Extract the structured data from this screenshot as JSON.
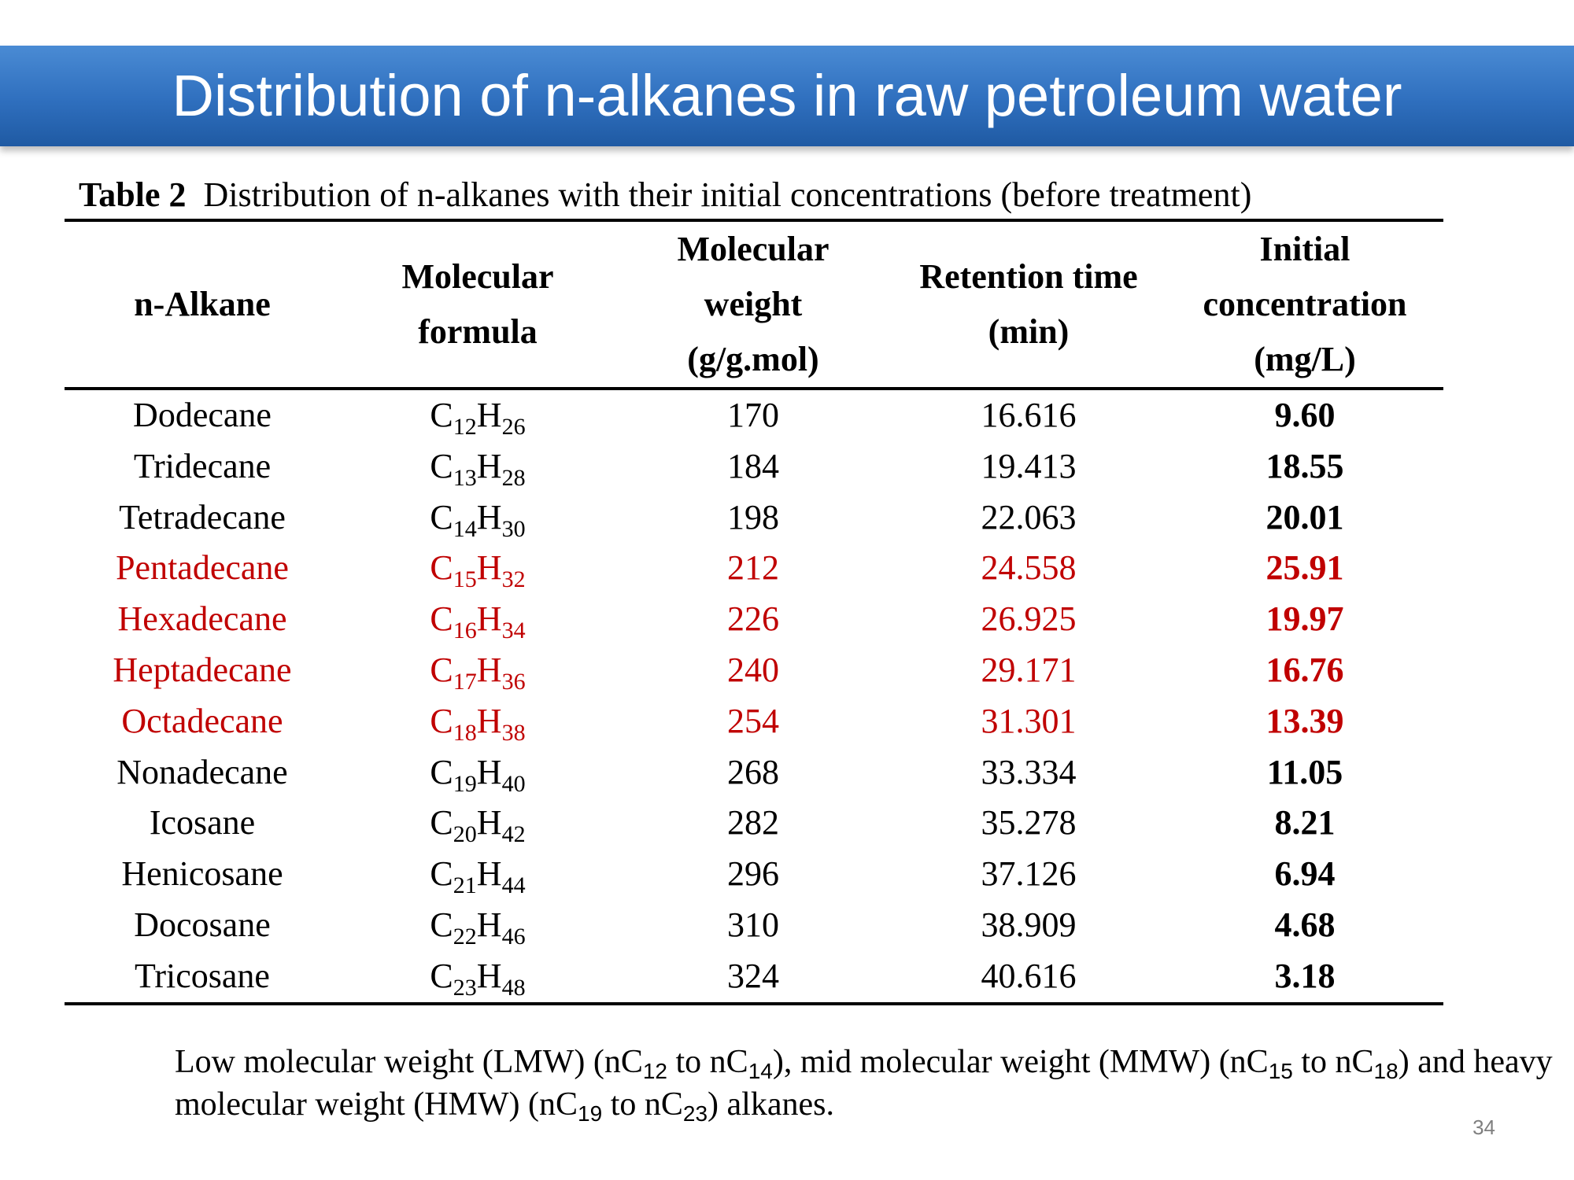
{
  "slide": {
    "title": "Distribution of n-alkanes in raw petroleum water",
    "page_number": "34"
  },
  "caption": {
    "label": "Table 2",
    "text": "Distribution of n-alkanes with their initial concentrations (before treatment)"
  },
  "table": {
    "headers": {
      "h1": [
        "n-Alkane"
      ],
      "h2": [
        "Molecular",
        "formula"
      ],
      "h3": [
        "Molecular",
        "weight",
        "(g/g.mol)"
      ],
      "h4": [
        "Retention time",
        "(min)"
      ],
      "h5": [
        "Initial",
        "concentration",
        "(mg/L)"
      ]
    },
    "highlight_color": "#c00000",
    "rows": [
      {
        "name": "Dodecane",
        "c": "12",
        "h": "26",
        "mw": "170",
        "rt": "16.616",
        "conc": "9.60",
        "highlight": false
      },
      {
        "name": "Tridecane",
        "c": "13",
        "h": "28",
        "mw": "184",
        "rt": "19.413",
        "conc": "18.55",
        "highlight": false
      },
      {
        "name": "Tetradecane",
        "c": "14",
        "h": "30",
        "mw": "198",
        "rt": "22.063",
        "conc": "20.01",
        "highlight": false
      },
      {
        "name": "Pentadecane",
        "c": "15",
        "h": "32",
        "mw": "212",
        "rt": "24.558",
        "conc": "25.91",
        "highlight": true
      },
      {
        "name": "Hexadecane",
        "c": "16",
        "h": "34",
        "mw": "226",
        "rt": "26.925",
        "conc": "19.97",
        "highlight": true
      },
      {
        "name": "Heptadecane",
        "c": "17",
        "h": "36",
        "mw": "240",
        "rt": "29.171",
        "conc": "16.76",
        "highlight": true
      },
      {
        "name": "Octadecane",
        "c": "18",
        "h": "38",
        "mw": "254",
        "rt": "31.301",
        "conc": "13.39",
        "highlight": true
      },
      {
        "name": "Nonadecane",
        "c": "19",
        "h": "40",
        "mw": "268",
        "rt": "33.334",
        "conc": "11.05",
        "highlight": false
      },
      {
        "name": "Icosane",
        "c": "20",
        "h": "42",
        "mw": "282",
        "rt": "35.278",
        "conc": "8.21",
        "highlight": false
      },
      {
        "name": "Henicosane",
        "c": "21",
        "h": "44",
        "mw": "296",
        "rt": "37.126",
        "conc": "6.94",
        "highlight": false
      },
      {
        "name": "Docosane",
        "c": "22",
        "h": "46",
        "mw": "310",
        "rt": "38.909",
        "conc": "4.68",
        "highlight": false
      },
      {
        "name": "Tricosane",
        "c": "23",
        "h": "48",
        "mw": "324",
        "rt": "40.616",
        "conc": "3.18",
        "highlight": false
      }
    ]
  },
  "note": {
    "p1": "Low molecular weight (LMW) (nC",
    "s1": "12",
    "p2": " to nC",
    "s2": "14",
    "p3": "), mid molecular weight (MMW) (nC",
    "s3": "15",
    "p4": " to nC",
    "s4": "18",
    "p5": ") and heavy molecular weight (HMW) (nC",
    "s5": "19",
    "p6": " to nC",
    "s6": "23",
    "p7": ") alkanes."
  }
}
